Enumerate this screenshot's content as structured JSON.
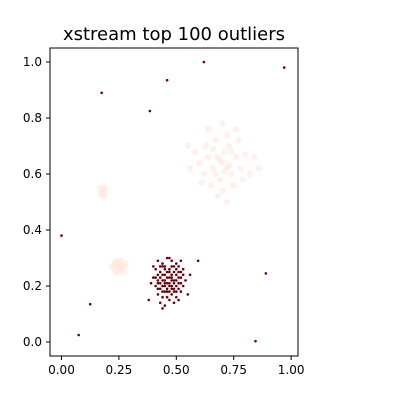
{
  "chart_data": {
    "type": "scatter",
    "title": "xstream top 100 outliers",
    "xlabel": "",
    "ylabel": "",
    "xlim": [
      -0.05,
      1.03
    ],
    "ylim": [
      -0.05,
      1.05
    ],
    "xticks": [
      "0.00",
      "0.25",
      "0.50",
      "0.75",
      "1.00"
    ],
    "xtick_values": [
      0.0,
      0.25,
      0.5,
      0.75,
      1.0
    ],
    "yticks": [
      "0.0",
      "0.2",
      "0.4",
      "0.6",
      "0.8",
      "1.0"
    ],
    "ytick_values": [
      0.0,
      0.2,
      0.4,
      0.6,
      0.8,
      1.0
    ],
    "grid": false,
    "colors": {
      "inlier": "#fde6dc",
      "outlier": "#67000d",
      "axes": "#000000",
      "background": "#ffffff"
    },
    "series": [
      {
        "points": [
          [
            0.7,
            0.64
          ],
          [
            0.72,
            0.62
          ],
          [
            0.68,
            0.66
          ],
          [
            0.74,
            0.6
          ],
          [
            0.66,
            0.62
          ],
          [
            0.71,
            0.68
          ],
          [
            0.76,
            0.66
          ],
          [
            0.64,
            0.66
          ],
          [
            0.69,
            0.58
          ],
          [
            0.73,
            0.7
          ],
          [
            0.78,
            0.62
          ],
          [
            0.62,
            0.6
          ],
          [
            0.67,
            0.72
          ],
          [
            0.75,
            0.56
          ],
          [
            0.8,
            0.67
          ],
          [
            0.6,
            0.64
          ],
          [
            0.72,
            0.74
          ],
          [
            0.7,
            0.54
          ],
          [
            0.65,
            0.56
          ],
          [
            0.77,
            0.72
          ],
          [
            0.63,
            0.7
          ],
          [
            0.82,
            0.6
          ],
          [
            0.58,
            0.68
          ],
          [
            0.71,
            0.61
          ],
          [
            0.69,
            0.65
          ],
          [
            0.73,
            0.63
          ],
          [
            0.67,
            0.6
          ],
          [
            0.74,
            0.68
          ],
          [
            0.66,
            0.69
          ],
          [
            0.79,
            0.58
          ],
          [
            0.61,
            0.57
          ],
          [
            0.84,
            0.66
          ],
          [
            0.56,
            0.62
          ],
          [
            0.7,
            0.78
          ],
          [
            0.72,
            0.5
          ],
          [
            0.86,
            0.62
          ],
          [
            0.55,
            0.7
          ],
          [
            0.68,
            0.52
          ],
          [
            0.76,
            0.76
          ],
          [
            0.64,
            0.76
          ],
          [
            0.18,
            0.54
          ],
          [
            0.17,
            0.53
          ],
          [
            0.19,
            0.53
          ],
          [
            0.18,
            0.52
          ],
          [
            0.17,
            0.55
          ],
          [
            0.19,
            0.55
          ],
          [
            0.24,
            0.27
          ],
          [
            0.26,
            0.26
          ],
          [
            0.25,
            0.28
          ],
          [
            0.23,
            0.26
          ],
          [
            0.27,
            0.27
          ],
          [
            0.25,
            0.25
          ],
          [
            0.24,
            0.29
          ],
          [
            0.26,
            0.29
          ],
          [
            0.23,
            0.28
          ],
          [
            0.27,
            0.25
          ],
          [
            0.22,
            0.27
          ],
          [
            0.28,
            0.28
          ],
          [
            0.25,
            0.27
          ],
          [
            0.24,
            0.25
          ],
          [
            0.26,
            0.27
          ]
        ]
      },
      {
        "points": [
          [
            0.62,
            1.0
          ],
          [
            0.46,
            0.935
          ],
          [
            0.97,
            0.98
          ],
          [
            0.175,
            0.89
          ],
          [
            0.385,
            0.825
          ],
          [
            0.0,
            0.38
          ],
          [
            0.595,
            0.29
          ],
          [
            0.89,
            0.245
          ],
          [
            0.125,
            0.135
          ],
          [
            0.075,
            0.025
          ],
          [
            0.845,
            0.003
          ],
          [
            0.42,
            0.29
          ],
          [
            0.44,
            0.28
          ],
          [
            0.46,
            0.3
          ],
          [
            0.48,
            0.29
          ],
          [
            0.5,
            0.28
          ],
          [
            0.52,
            0.29
          ],
          [
            0.41,
            0.26
          ],
          [
            0.43,
            0.25
          ],
          [
            0.45,
            0.27
          ],
          [
            0.47,
            0.26
          ],
          [
            0.49,
            0.25
          ],
          [
            0.51,
            0.27
          ],
          [
            0.53,
            0.26
          ],
          [
            0.4,
            0.23
          ],
          [
            0.42,
            0.22
          ],
          [
            0.44,
            0.24
          ],
          [
            0.46,
            0.23
          ],
          [
            0.48,
            0.22
          ],
          [
            0.5,
            0.24
          ],
          [
            0.52,
            0.23
          ],
          [
            0.54,
            0.22
          ],
          [
            0.41,
            0.2
          ],
          [
            0.43,
            0.19
          ],
          [
            0.45,
            0.21
          ],
          [
            0.47,
            0.2
          ],
          [
            0.49,
            0.19
          ],
          [
            0.51,
            0.21
          ],
          [
            0.53,
            0.2
          ],
          [
            0.42,
            0.17
          ],
          [
            0.44,
            0.16
          ],
          [
            0.46,
            0.18
          ],
          [
            0.48,
            0.17
          ],
          [
            0.5,
            0.16
          ],
          [
            0.52,
            0.18
          ],
          [
            0.43,
            0.14
          ],
          [
            0.45,
            0.13
          ],
          [
            0.47,
            0.15
          ],
          [
            0.49,
            0.14
          ],
          [
            0.51,
            0.15
          ],
          [
            0.44,
            0.12
          ],
          [
            0.39,
            0.21
          ],
          [
            0.38,
            0.15
          ],
          [
            0.55,
            0.17
          ],
          [
            0.56,
            0.24
          ],
          [
            0.4,
            0.27
          ],
          [
            0.47,
            0.3
          ],
          [
            0.5,
            0.2
          ],
          [
            0.45,
            0.22
          ],
          [
            0.48,
            0.24
          ],
          [
            0.46,
            0.19
          ],
          [
            0.43,
            0.21
          ],
          [
            0.49,
            0.22
          ],
          [
            0.51,
            0.19
          ],
          [
            0.44,
            0.27
          ],
          [
            0.52,
            0.21
          ],
          [
            0.47,
            0.23
          ],
          [
            0.42,
            0.19
          ],
          [
            0.5,
            0.26
          ],
          [
            0.46,
            0.25
          ],
          [
            0.48,
            0.2
          ],
          [
            0.45,
            0.18
          ],
          [
            0.41,
            0.23
          ],
          [
            0.53,
            0.24
          ],
          [
            0.49,
            0.18
          ],
          [
            0.44,
            0.2
          ],
          [
            0.47,
            0.21
          ],
          [
            0.43,
            0.23
          ],
          [
            0.51,
            0.23
          ],
          [
            0.45,
            0.24
          ],
          [
            0.48,
            0.27
          ],
          [
            0.46,
            0.16
          ],
          [
            0.5,
            0.22
          ],
          [
            0.42,
            0.24
          ],
          [
            0.52,
            0.25
          ],
          [
            0.44,
            0.18
          ],
          [
            0.49,
            0.27
          ],
          [
            0.47,
            0.18
          ],
          [
            0.43,
            0.27
          ],
          [
            0.51,
            0.25
          ],
          [
            0.45,
            0.2
          ],
          [
            0.48,
            0.19
          ],
          [
            0.46,
            0.21
          ],
          [
            0.5,
            0.18
          ],
          [
            0.44,
            0.22
          ],
          [
            0.47,
            0.25
          ],
          [
            0.42,
            0.21
          ],
          [
            0.49,
            0.21
          ],
          [
            0.45,
            0.26
          ],
          [
            0.48,
            0.23
          ]
        ]
      }
    ]
  }
}
